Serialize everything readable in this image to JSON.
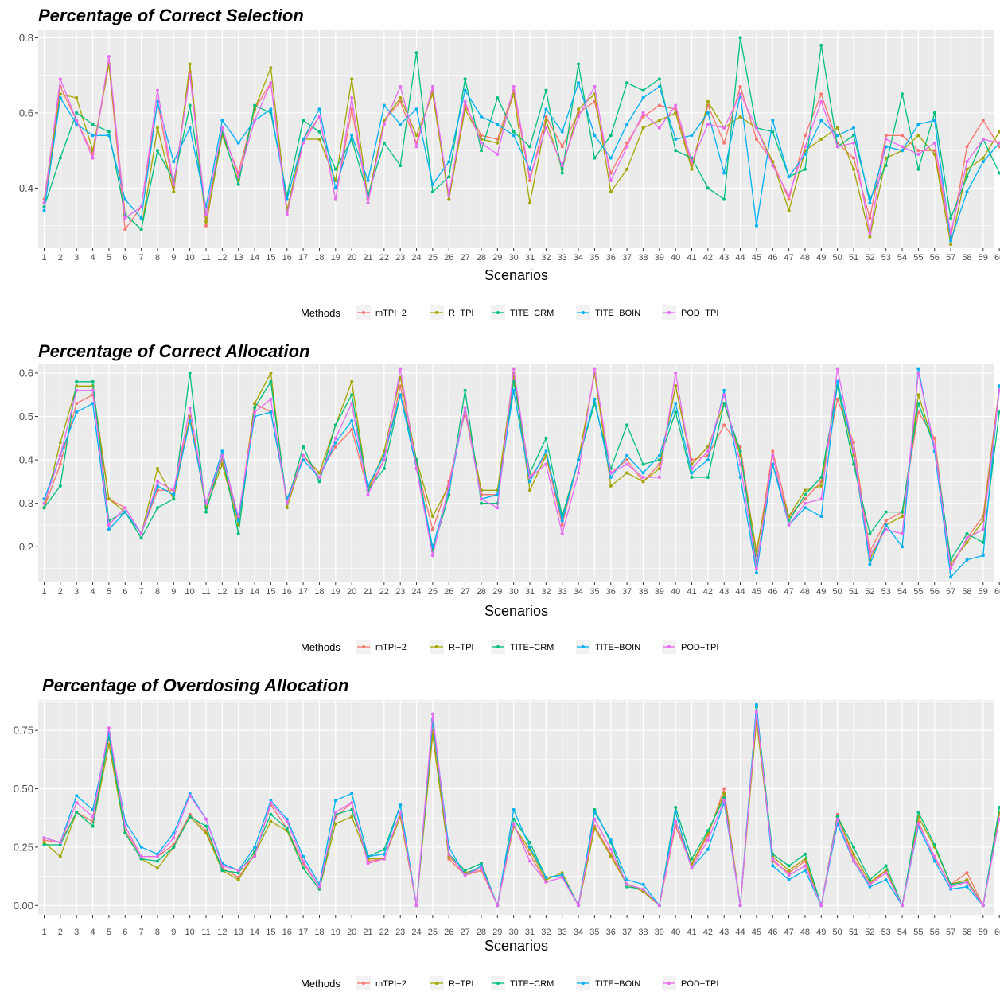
{
  "chart_data": [
    {
      "type": "line",
      "title": "Percentage of Correct Selection",
      "xlabel": "Scenarios",
      "ylabel": "",
      "xlim": [
        1,
        60
      ],
      "ylim": [
        0.24,
        0.82
      ],
      "yticks": [
        0.4,
        0.6,
        0.8
      ],
      "ytick_labels": [
        "0.4",
        "0.6",
        "0.8"
      ],
      "grid": true,
      "legend_position": "bottom",
      "legend_title": "Methods",
      "series": [
        {
          "name": "mTPI−2",
          "color": "#F8766D",
          "values": [
            0.37,
            0.67,
            0.58,
            0.49,
            0.73,
            0.29,
            0.35,
            0.63,
            0.4,
            0.71,
            0.3,
            0.55,
            0.44,
            0.61,
            0.68,
            0.34,
            0.53,
            0.59,
            0.37,
            0.61,
            0.37,
            0.58,
            0.63,
            0.52,
            0.66,
            0.37,
            0.62,
            0.54,
            0.53,
            0.66,
            0.42,
            0.59,
            0.51,
            0.6,
            0.63,
            0.44,
            0.52,
            0.59,
            0.62,
            0.61,
            0.46,
            0.62,
            0.52,
            0.67,
            0.53,
            0.47,
            0.37,
            0.54,
            0.65,
            0.52,
            0.48,
            0.32,
            0.54,
            0.54,
            0.5,
            0.5,
            0.27,
            0.51,
            0.58,
            0.51
          ]
        },
        {
          "name": "R−TPI",
          "color": "#A3A500",
          "values": [
            0.36,
            0.65,
            0.64,
            0.5,
            0.73,
            0.33,
            0.29,
            0.56,
            0.39,
            0.73,
            0.31,
            0.54,
            0.42,
            0.61,
            0.72,
            0.34,
            0.53,
            0.53,
            0.42,
            0.69,
            0.37,
            0.58,
            0.64,
            0.54,
            0.65,
            0.37,
            0.61,
            0.53,
            0.52,
            0.65,
            0.36,
            0.58,
            0.45,
            0.61,
            0.65,
            0.39,
            0.45,
            0.56,
            0.58,
            0.6,
            0.45,
            0.63,
            0.56,
            0.59,
            0.56,
            0.47,
            0.34,
            0.5,
            0.53,
            0.56,
            0.45,
            0.27,
            0.48,
            0.5,
            0.54,
            0.49,
            0.25,
            0.45,
            0.48,
            0.55
          ]
        },
        {
          "name": "TITE−CRM",
          "color": "#00BF7D",
          "values": [
            0.35,
            0.48,
            0.6,
            0.57,
            0.55,
            0.33,
            0.29,
            0.5,
            0.42,
            0.62,
            0.33,
            0.55,
            0.41,
            0.62,
            0.6,
            0.38,
            0.58,
            0.55,
            0.45,
            0.53,
            0.38,
            0.52,
            0.46,
            0.76,
            0.39,
            0.43,
            0.69,
            0.5,
            0.64,
            0.55,
            0.51,
            0.66,
            0.44,
            0.73,
            0.48,
            0.54,
            0.68,
            0.66,
            0.69,
            0.5,
            0.48,
            0.4,
            0.37,
            0.8,
            0.56,
            0.55,
            0.43,
            0.45,
            0.78,
            0.51,
            0.54,
            0.37,
            0.46,
            0.65,
            0.45,
            0.6,
            0.32,
            0.43,
            0.53,
            0.44
          ]
        },
        {
          "name": "TITE−BOIN",
          "color": "#00B0F6",
          "values": [
            0.34,
            0.64,
            0.57,
            0.54,
            0.54,
            0.37,
            0.32,
            0.63,
            0.47,
            0.56,
            0.35,
            0.58,
            0.52,
            0.58,
            0.61,
            0.37,
            0.53,
            0.61,
            0.4,
            0.54,
            0.42,
            0.62,
            0.57,
            0.61,
            0.41,
            0.47,
            0.66,
            0.59,
            0.57,
            0.54,
            0.45,
            0.61,
            0.55,
            0.68,
            0.54,
            0.48,
            0.57,
            0.64,
            0.67,
            0.53,
            0.54,
            0.6,
            0.44,
            0.65,
            0.3,
            0.58,
            0.43,
            0.49,
            0.58,
            0.54,
            0.56,
            0.36,
            0.51,
            0.5,
            0.57,
            0.58,
            0.26,
            0.39,
            0.47,
            0.52
          ]
        },
        {
          "name": "POD−TPI",
          "color": "#E76BF3",
          "values": [
            0.36,
            0.69,
            0.58,
            0.48,
            0.75,
            0.32,
            0.35,
            0.66,
            0.41,
            0.7,
            0.33,
            0.56,
            0.43,
            0.58,
            0.68,
            0.33,
            0.52,
            0.59,
            0.37,
            0.64,
            0.36,
            0.57,
            0.67,
            0.51,
            0.67,
            0.38,
            0.63,
            0.52,
            0.49,
            0.67,
            0.43,
            0.56,
            0.46,
            0.59,
            0.67,
            0.42,
            0.51,
            0.6,
            0.56,
            0.62,
            0.47,
            0.57,
            0.56,
            0.65,
            0.56,
            0.46,
            0.38,
            0.51,
            0.63,
            0.51,
            0.52,
            0.28,
            0.53,
            0.51,
            0.49,
            0.52,
            0.28,
            0.47,
            0.53,
            0.52
          ]
        }
      ]
    },
    {
      "type": "line",
      "title": "Percentage of Correct Allocation",
      "xlabel": "Scenarios",
      "ylabel": "",
      "xlim": [
        1,
        60
      ],
      "ylim": [
        0.12,
        0.62
      ],
      "yticks": [
        0.2,
        0.3,
        0.4,
        0.5,
        0.6
      ],
      "ytick_labels": [
        "0.2",
        "0.3",
        "0.4",
        "0.5",
        "0.6"
      ],
      "grid": true,
      "legend_position": "bottom",
      "legend_title": "Methods",
      "series": [
        {
          "name": "mTPI−2",
          "color": "#F8766D",
          "values": [
            0.29,
            0.39,
            0.53,
            0.55,
            0.31,
            0.29,
            0.23,
            0.33,
            0.33,
            0.5,
            0.3,
            0.4,
            0.26,
            0.53,
            0.51,
            0.31,
            0.41,
            0.37,
            0.43,
            0.47,
            0.33,
            0.4,
            0.57,
            0.39,
            0.24,
            0.35,
            0.51,
            0.32,
            0.32,
            0.59,
            0.36,
            0.41,
            0.25,
            0.4,
            0.6,
            0.37,
            0.4,
            0.35,
            0.39,
            0.57,
            0.4,
            0.41,
            0.48,
            0.43,
            0.18,
            0.42,
            0.27,
            0.31,
            0.35,
            0.54,
            0.44,
            0.19,
            0.26,
            0.28,
            0.51,
            0.45,
            0.15,
            0.22,
            0.27,
            0.57
          ]
        },
        {
          "name": "R−TPI",
          "color": "#A3A500",
          "values": [
            0.29,
            0.44,
            0.57,
            0.57,
            0.31,
            0.28,
            0.23,
            0.38,
            0.31,
            0.5,
            0.29,
            0.39,
            0.25,
            0.53,
            0.6,
            0.29,
            0.41,
            0.37,
            0.48,
            0.58,
            0.33,
            0.42,
            0.59,
            0.4,
            0.27,
            0.34,
            0.52,
            0.33,
            0.33,
            0.6,
            0.33,
            0.41,
            0.27,
            0.4,
            0.6,
            0.34,
            0.37,
            0.35,
            0.38,
            0.57,
            0.39,
            0.43,
            0.53,
            0.41,
            0.19,
            0.39,
            0.27,
            0.33,
            0.34,
            0.58,
            0.41,
            0.17,
            0.25,
            0.27,
            0.55,
            0.43,
            0.16,
            0.21,
            0.26,
            0.56
          ]
        },
        {
          "name": "TITE−CRM",
          "color": "#00BF7D",
          "values": [
            0.29,
            0.34,
            0.58,
            0.58,
            0.26,
            0.28,
            0.22,
            0.29,
            0.31,
            0.6,
            0.28,
            0.41,
            0.23,
            0.52,
            0.58,
            0.3,
            0.43,
            0.35,
            0.48,
            0.55,
            0.33,
            0.38,
            0.55,
            0.4,
            0.19,
            0.32,
            0.56,
            0.3,
            0.3,
            0.58,
            0.37,
            0.45,
            0.27,
            0.4,
            0.53,
            0.38,
            0.48,
            0.39,
            0.4,
            0.51,
            0.36,
            0.36,
            0.53,
            0.42,
            0.16,
            0.39,
            0.26,
            0.32,
            0.36,
            0.57,
            0.39,
            0.23,
            0.28,
            0.28,
            0.53,
            0.43,
            0.17,
            0.23,
            0.21,
            0.51
          ]
        },
        {
          "name": "TITE−BOIN",
          "color": "#00B0F6",
          "values": [
            0.31,
            0.41,
            0.51,
            0.53,
            0.24,
            0.28,
            0.23,
            0.34,
            0.32,
            0.49,
            0.3,
            0.42,
            0.26,
            0.5,
            0.51,
            0.31,
            0.4,
            0.36,
            0.44,
            0.49,
            0.34,
            0.41,
            0.55,
            0.38,
            0.2,
            0.33,
            0.52,
            0.31,
            0.32,
            0.56,
            0.35,
            0.42,
            0.26,
            0.4,
            0.54,
            0.36,
            0.41,
            0.37,
            0.41,
            0.53,
            0.37,
            0.4,
            0.56,
            0.36,
            0.14,
            0.39,
            0.25,
            0.29,
            0.27,
            0.58,
            0.42,
            0.16,
            0.25,
            0.2,
            0.61,
            0.42,
            0.13,
            0.17,
            0.18,
            0.57
          ]
        },
        {
          "name": "POD−TPI",
          "color": "#E76BF3",
          "values": [
            0.3,
            0.41,
            0.56,
            0.56,
            0.25,
            0.29,
            0.23,
            0.35,
            0.33,
            0.52,
            0.3,
            0.41,
            0.27,
            0.51,
            0.54,
            0.3,
            0.41,
            0.36,
            0.45,
            0.53,
            0.32,
            0.4,
            0.61,
            0.38,
            0.18,
            0.34,
            0.52,
            0.31,
            0.29,
            0.61,
            0.36,
            0.39,
            0.23,
            0.37,
            0.61,
            0.37,
            0.39,
            0.36,
            0.36,
            0.6,
            0.38,
            0.42,
            0.55,
            0.39,
            0.15,
            0.41,
            0.25,
            0.3,
            0.31,
            0.61,
            0.42,
            0.18,
            0.24,
            0.23,
            0.6,
            0.43,
            0.15,
            0.22,
            0.24,
            0.56
          ]
        }
      ]
    },
    {
      "type": "line",
      "title": "Percentage of Overdosing Allocation",
      "xlabel": "Scenarios",
      "ylabel": "",
      "xlim": [
        1,
        60
      ],
      "ylim": [
        -0.04,
        0.88
      ],
      "yticks": [
        0.0,
        0.25,
        0.5,
        0.75
      ],
      "ytick_labels": [
        "0.00",
        "0.25",
        "0.50",
        "0.75"
      ],
      "grid": true,
      "legend_position": "bottom",
      "legend_title": "Methods",
      "series": [
        {
          "name": "mTPI−2",
          "color": "#F8766D",
          "values": [
            0.28,
            0.27,
            0.4,
            0.36,
            0.72,
            0.32,
            0.21,
            0.21,
            0.26,
            0.39,
            0.32,
            0.16,
            0.12,
            0.22,
            0.43,
            0.33,
            0.18,
            0.08,
            0.38,
            0.44,
            0.19,
            0.2,
            0.4,
            0.0,
            0.75,
            0.2,
            0.13,
            0.15,
            0.0,
            0.34,
            0.22,
            0.1,
            0.12,
            0.0,
            0.34,
            0.22,
            0.09,
            0.06,
            0.0,
            0.34,
            0.17,
            0.3,
            0.5,
            0.0,
            0.82,
            0.19,
            0.14,
            0.19,
            0.0,
            0.39,
            0.2,
            0.09,
            0.15,
            0.0,
            0.36,
            0.2,
            0.09,
            0.14,
            0.0,
            0.39
          ]
        },
        {
          "name": "R−TPI",
          "color": "#A3A500",
          "values": [
            0.27,
            0.21,
            0.4,
            0.34,
            0.69,
            0.31,
            0.2,
            0.16,
            0.25,
            0.38,
            0.31,
            0.15,
            0.11,
            0.22,
            0.36,
            0.32,
            0.16,
            0.07,
            0.35,
            0.38,
            0.2,
            0.2,
            0.38,
            0.0,
            0.73,
            0.21,
            0.14,
            0.16,
            0.0,
            0.34,
            0.24,
            0.11,
            0.14,
            0.0,
            0.33,
            0.21,
            0.09,
            0.06,
            0.0,
            0.36,
            0.18,
            0.31,
            0.48,
            0.0,
            0.79,
            0.21,
            0.15,
            0.2,
            0.0,
            0.38,
            0.22,
            0.1,
            0.15,
            0.0,
            0.38,
            0.25,
            0.09,
            0.11,
            0.0,
            0.4
          ]
        },
        {
          "name": "TITE−CRM",
          "color": "#00BF7D",
          "values": [
            0.26,
            0.26,
            0.4,
            0.34,
            0.73,
            0.31,
            0.2,
            0.19,
            0.25,
            0.38,
            0.34,
            0.15,
            0.14,
            0.23,
            0.39,
            0.33,
            0.16,
            0.07,
            0.39,
            0.41,
            0.21,
            0.24,
            0.43,
            0.0,
            0.79,
            0.22,
            0.15,
            0.18,
            0.0,
            0.37,
            0.27,
            0.12,
            0.13,
            0.0,
            0.41,
            0.27,
            0.08,
            0.07,
            0.0,
            0.42,
            0.2,
            0.32,
            0.46,
            0.0,
            0.85,
            0.22,
            0.17,
            0.22,
            0.0,
            0.38,
            0.25,
            0.11,
            0.17,
            0.0,
            0.4,
            0.26,
            0.09,
            0.1,
            0.0,
            0.42
          ]
        },
        {
          "name": "TITE−BOIN",
          "color": "#00B0F6",
          "values": [
            0.29,
            0.27,
            0.47,
            0.41,
            0.74,
            0.36,
            0.25,
            0.22,
            0.31,
            0.48,
            0.37,
            0.18,
            0.15,
            0.25,
            0.45,
            0.37,
            0.21,
            0.09,
            0.45,
            0.48,
            0.21,
            0.22,
            0.43,
            0.0,
            0.8,
            0.25,
            0.13,
            0.17,
            0.0,
            0.41,
            0.25,
            0.12,
            0.13,
            0.0,
            0.4,
            0.28,
            0.11,
            0.09,
            0.0,
            0.4,
            0.16,
            0.24,
            0.44,
            0.0,
            0.86,
            0.17,
            0.11,
            0.15,
            0.0,
            0.35,
            0.19,
            0.08,
            0.11,
            0.0,
            0.34,
            0.19,
            0.07,
            0.08,
            0.0,
            0.37
          ]
        },
        {
          "name": "POD−TPI",
          "color": "#E76BF3",
          "values": [
            0.29,
            0.27,
            0.44,
            0.38,
            0.76,
            0.34,
            0.21,
            0.21,
            0.29,
            0.47,
            0.37,
            0.17,
            0.15,
            0.21,
            0.44,
            0.36,
            0.19,
            0.08,
            0.4,
            0.44,
            0.18,
            0.2,
            0.4,
            0.0,
            0.82,
            0.22,
            0.13,
            0.16,
            0.0,
            0.35,
            0.19,
            0.1,
            0.12,
            0.0,
            0.37,
            0.24,
            0.09,
            0.07,
            0.0,
            0.36,
            0.16,
            0.28,
            0.45,
            0.0,
            0.83,
            0.2,
            0.13,
            0.17,
            0.0,
            0.37,
            0.19,
            0.09,
            0.14,
            0.0,
            0.35,
            0.21,
            0.08,
            0.1,
            0.0,
            0.37
          ]
        }
      ]
    }
  ]
}
